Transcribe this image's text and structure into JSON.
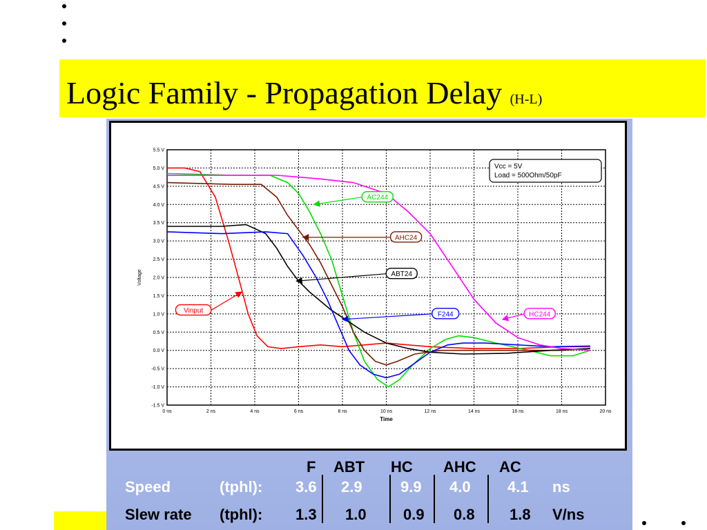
{
  "slide": {
    "title": "Logic Family - Propagation Delay",
    "title_suffix": "(H-L)"
  },
  "chart_data": {
    "type": "line",
    "ylabel": "Voltage",
    "xlabel": "Time",
    "xlim": [
      0,
      20
    ],
    "ylim": [
      -1.5,
      5.5
    ],
    "x_ticks": [
      "0 ns",
      "2 ns",
      "4 ns",
      "6 ns",
      "8 ns",
      "10 ns",
      "12 ns",
      "14 ns",
      "16 ns",
      "18 ns",
      "20 ns"
    ],
    "y_ticks": [
      "5.5 V",
      "5.0 V",
      "4.5 V",
      "4.0 V",
      "3.5 V",
      "3.0 V",
      "2.5 V",
      "2.0 V",
      "1.5 V",
      "1.0 V",
      "0.5 V",
      "0.0 V",
      "-0.5 V",
      "-1.0 V",
      "-1.5 V"
    ],
    "grid": true,
    "annotation": [
      "Vcc = 5V",
      "Load = 500Ohm/50pF"
    ],
    "series": [
      {
        "name": "Vinput",
        "color": "#ff0000",
        "label_at": [
          1.2,
          1.1
        ],
        "arrow_to": [
          3.4,
          1.6
        ],
        "points": [
          [
            0,
            5.0
          ],
          [
            0.8,
            5.0
          ],
          [
            1.5,
            4.9
          ],
          [
            2.2,
            4.2
          ],
          [
            2.8,
            3.0
          ],
          [
            3.3,
            1.9
          ],
          [
            3.7,
            1.0
          ],
          [
            4.1,
            0.4
          ],
          [
            4.6,
            0.1
          ],
          [
            5.2,
            0.05
          ],
          [
            6,
            0.1
          ],
          [
            7,
            0.15
          ],
          [
            8,
            0.1
          ],
          [
            9,
            0.15
          ],
          [
            10,
            0.2
          ],
          [
            11,
            0.15
          ],
          [
            12,
            0.1
          ],
          [
            14,
            0.05
          ],
          [
            16,
            0.05
          ],
          [
            18,
            0.1
          ],
          [
            19.3,
            0.1
          ]
        ]
      },
      {
        "name": "AC244",
        "color": "#00dd00",
        "label_at": [
          9.6,
          4.2
        ],
        "arrow_to": [
          6.7,
          4.0
        ],
        "points": [
          [
            0,
            4.85
          ],
          [
            3,
            4.8
          ],
          [
            4.7,
            4.8
          ],
          [
            5.5,
            4.6
          ],
          [
            6.0,
            4.3
          ],
          [
            6.5,
            3.8
          ],
          [
            7.0,
            3.2
          ],
          [
            7.5,
            2.5
          ],
          [
            8.0,
            1.5
          ],
          [
            8.5,
            0.5
          ],
          [
            9.0,
            -0.3
          ],
          [
            9.6,
            -0.8
          ],
          [
            10.1,
            -1.0
          ],
          [
            10.6,
            -0.8
          ],
          [
            11.2,
            -0.4
          ],
          [
            12.0,
            0.05
          ],
          [
            12.7,
            0.3
          ],
          [
            13.3,
            0.4
          ],
          [
            14.0,
            0.35
          ],
          [
            15.0,
            0.2
          ],
          [
            16.5,
            0.0
          ],
          [
            17.5,
            -0.15
          ],
          [
            18.5,
            -0.15
          ],
          [
            19.3,
            0.0
          ]
        ]
      },
      {
        "name": "AHC24",
        "color": "#7a1a00",
        "label_at": [
          10.9,
          3.1
        ],
        "arrow_to": [
          6.2,
          3.1
        ],
        "points": [
          [
            0,
            4.6
          ],
          [
            3,
            4.55
          ],
          [
            4.3,
            4.55
          ],
          [
            5.0,
            4.2
          ],
          [
            5.5,
            3.7
          ],
          [
            6.0,
            3.3
          ],
          [
            6.5,
            2.9
          ],
          [
            7.0,
            2.4
          ],
          [
            7.5,
            1.8
          ],
          [
            8.0,
            1.2
          ],
          [
            8.5,
            0.5
          ],
          [
            9.0,
            0.0
          ],
          [
            9.5,
            -0.3
          ],
          [
            10.0,
            -0.4
          ],
          [
            10.5,
            -0.3
          ],
          [
            11.3,
            -0.1
          ],
          [
            12.5,
            0.0
          ],
          [
            14,
            0.0
          ],
          [
            16,
            0.0
          ],
          [
            18,
            0.0
          ],
          [
            19.3,
            0.05
          ]
        ]
      },
      {
        "name": "ABT24",
        "color": "#000000",
        "label_at": [
          10.7,
          2.1
        ],
        "arrow_to": [
          5.9,
          1.9
        ],
        "points": [
          [
            0,
            3.4
          ],
          [
            2.5,
            3.4
          ],
          [
            3.6,
            3.45
          ],
          [
            4.5,
            3.2
          ],
          [
            5.0,
            2.8
          ],
          [
            5.5,
            2.3
          ],
          [
            6.0,
            1.9
          ],
          [
            6.5,
            1.6
          ],
          [
            7.0,
            1.35
          ],
          [
            7.5,
            1.1
          ],
          [
            8.0,
            0.9
          ],
          [
            8.5,
            0.7
          ],
          [
            9.0,
            0.5
          ],
          [
            9.5,
            0.35
          ],
          [
            10.0,
            0.2
          ],
          [
            11.0,
            0.05
          ],
          [
            12.0,
            -0.05
          ],
          [
            13.5,
            -0.1
          ],
          [
            15.5,
            -0.08
          ],
          [
            17.5,
            0.0
          ],
          [
            19.3,
            0.05
          ]
        ]
      },
      {
        "name": "F244",
        "color": "#0000ff",
        "label_at": [
          12.7,
          1.0
        ],
        "arrow_to": [
          8.0,
          0.85
        ],
        "points": [
          [
            0,
            3.25
          ],
          [
            2.5,
            3.2
          ],
          [
            4.5,
            3.25
          ],
          [
            5.5,
            3.2
          ],
          [
            6.2,
            2.6
          ],
          [
            6.8,
            2.0
          ],
          [
            7.3,
            1.4
          ],
          [
            7.8,
            0.7
          ],
          [
            8.3,
            0.0
          ],
          [
            8.8,
            -0.4
          ],
          [
            9.4,
            -0.65
          ],
          [
            10.0,
            -0.75
          ],
          [
            10.6,
            -0.65
          ],
          [
            11.3,
            -0.35
          ],
          [
            12.0,
            -0.05
          ],
          [
            12.8,
            0.15
          ],
          [
            13.5,
            0.2
          ],
          [
            14.5,
            0.2
          ],
          [
            16.0,
            0.15
          ],
          [
            17.5,
            0.1
          ],
          [
            19.3,
            0.12
          ]
        ]
      },
      {
        "name": "HC244",
        "color": "#ff00ff",
        "label_at": [
          17.0,
          1.0
        ],
        "arrow_to": [
          15.3,
          0.85
        ],
        "points": [
          [
            0,
            4.8
          ],
          [
            2.5,
            4.8
          ],
          [
            5.0,
            4.8
          ],
          [
            6.0,
            4.75
          ],
          [
            7.0,
            4.7
          ],
          [
            8.5,
            4.6
          ],
          [
            10.0,
            4.3
          ],
          [
            11.0,
            3.8
          ],
          [
            12.0,
            3.2
          ],
          [
            13.0,
            2.3
          ],
          [
            14.0,
            1.4
          ],
          [
            15.0,
            0.75
          ],
          [
            16.0,
            0.35
          ],
          [
            17.0,
            0.15
          ],
          [
            18.0,
            0.05
          ],
          [
            19.3,
            0.0
          ]
        ]
      }
    ]
  },
  "table": {
    "headers": [
      "F",
      "ABT",
      "HC",
      "AHC",
      "AC"
    ],
    "speed": {
      "label": "Speed",
      "param": "(tphl):",
      "values": [
        "3.6",
        "2.9",
        "9.9",
        "4.0",
        "4.1"
      ],
      "unit": "ns"
    },
    "slew": {
      "label": "Slew rate",
      "param": "(tphl):",
      "values": [
        "1.3",
        "1.0",
        "0.9",
        "0.8",
        "1.8"
      ],
      "unit": "V/ns"
    }
  }
}
